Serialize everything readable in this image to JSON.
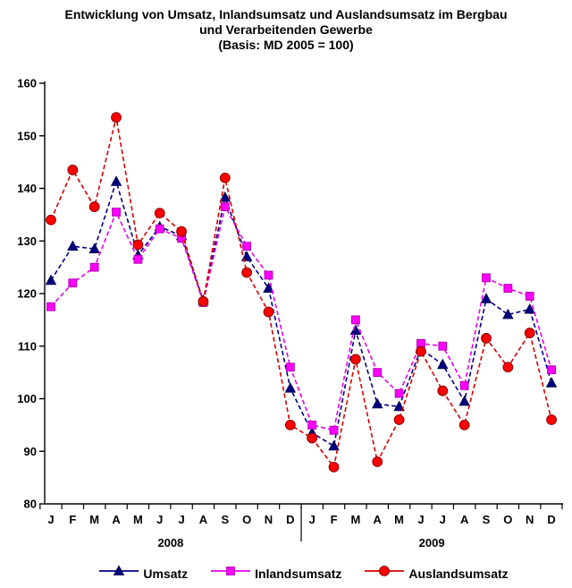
{
  "title": {
    "line1": "Entwicklung von Umsatz, Inlandsumsatz und Auslandsumsatz im Bergbau",
    "line2": "und Verarbeitenden Gewerbe",
    "line3": "(Basis: MD 2005 = 100)"
  },
  "chart_data": {
    "type": "line",
    "x_categories": [
      "J",
      "F",
      "M",
      "A",
      "M",
      "J",
      "J",
      "A",
      "S",
      "O",
      "N",
      "D",
      "J",
      "F",
      "M",
      "A",
      "M",
      "J",
      "J",
      "A",
      "S",
      "O",
      "N",
      "D"
    ],
    "years": [
      "2008",
      "2009"
    ],
    "ylim": [
      80,
      160
    ],
    "yticks": [
      160,
      150,
      140,
      130,
      120,
      110,
      100,
      90,
      80
    ],
    "grid": "off",
    "legend_position": "bottom",
    "series": [
      {
        "name": "Umsatz",
        "marker": "triangle",
        "color": "#000080",
        "line_color": "#000080",
        "values": [
          122.5,
          129,
          128.5,
          141.3,
          127.3,
          132.7,
          131,
          118.7,
          138.3,
          127,
          121,
          102,
          93.5,
          91,
          113,
          99,
          98.5,
          109.5,
          106.5,
          99.5,
          119,
          116,
          117,
          103
        ]
      },
      {
        "name": "Inlandsumsatz",
        "marker": "square",
        "color": "#FF00FF",
        "line_color": "#E800E8",
        "values": [
          117.5,
          122,
          125,
          135.5,
          126.5,
          132.3,
          130.5,
          118.3,
          136.5,
          129,
          123.5,
          106,
          95,
          94,
          115,
          105,
          101,
          110.5,
          110,
          102.5,
          123,
          121,
          119.5,
          105.5
        ]
      },
      {
        "name": "Auslandsumsatz",
        "marker": "circle",
        "color": "#FF0000",
        "line_color": "#D40000",
        "values": [
          134,
          143.5,
          136.5,
          153.5,
          129.3,
          135.3,
          131.8,
          118.5,
          142,
          124,
          116.5,
          95,
          92.5,
          87,
          107.5,
          88,
          96,
          109,
          101.5,
          95,
          111.5,
          106,
          112.5,
          96
        ]
      }
    ]
  }
}
